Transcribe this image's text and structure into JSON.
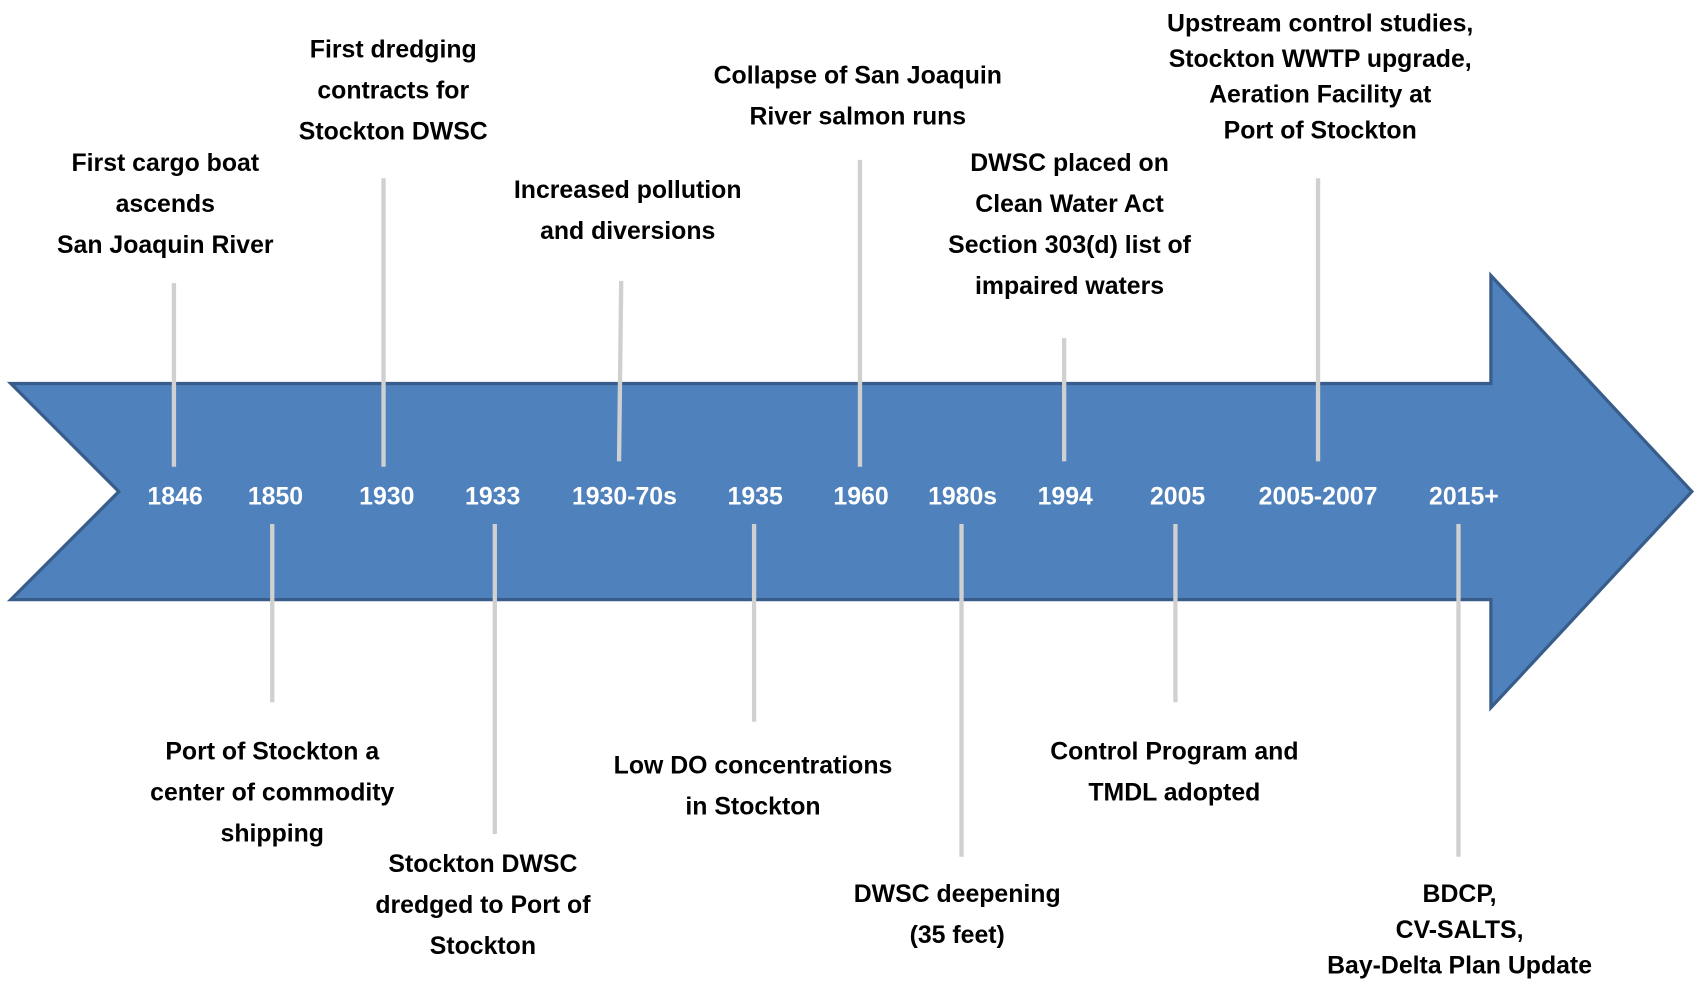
{
  "events": [
    {
      "year": "1846",
      "label": [
        "First cargo boat",
        "ascends",
        "San Joaquin River"
      ]
    },
    {
      "year": "1850",
      "label": [
        "Port of Stockton a",
        "center of commodity",
        "shipping"
      ]
    },
    {
      "year": "1930",
      "label": [
        "First dredging",
        "contracts for",
        "Stockton DWSC"
      ]
    },
    {
      "year": "1933",
      "label": [
        "Stockton DWSC",
        "dredged to Port of",
        "Stockton"
      ]
    },
    {
      "year": "1930-70s",
      "label": [
        "Increased pollution",
        "and diversions"
      ]
    },
    {
      "year": "1935",
      "label": [
        "Low DO concentrations",
        "in Stockton"
      ]
    },
    {
      "year": "1960",
      "label": [
        "Collapse of San Joaquin",
        "River salmon runs"
      ]
    },
    {
      "year": "1980s",
      "label": [
        "DWSC deepening",
        "(35 feet)"
      ]
    },
    {
      "year": "1994",
      "label": [
        "DWSC placed on",
        "Clean Water Act",
        "Section 303(d) list of",
        "impaired waters"
      ]
    },
    {
      "year": "2005",
      "label": [
        "Control Program and",
        "TMDL adopted"
      ]
    },
    {
      "year": "2005-2007",
      "label": [
        "Upstream control studies,",
        "Stockton WWTP upgrade,",
        "Aeration Facility at",
        "Port of Stockton"
      ]
    },
    {
      "year": "2015+",
      "label": [
        "BDCP,",
        "CV-SALTS,",
        "Bay-Delta Plan Update"
      ]
    }
  ]
}
